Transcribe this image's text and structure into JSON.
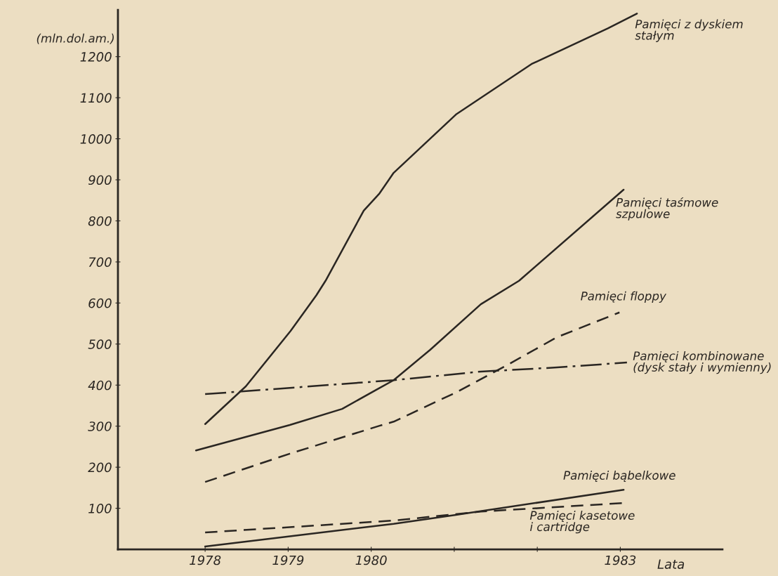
{
  "chart_data": {
    "type": "line",
    "xlabel": "Lata",
    "ylabel": "(mln.dol.am.)",
    "xlim": [
      1976.95,
      1984.23
    ],
    "ylim": [
      0,
      1314
    ],
    "xticks": [
      1978,
      1979,
      1980,
      {
        "value": 1981,
        "label": null
      },
      {
        "value": 1982,
        "label": null
      },
      1983
    ],
    "yticks": [
      100,
      200,
      300,
      400,
      500,
      600,
      700,
      800,
      900,
      1000,
      1100,
      1200
    ],
    "grid": false,
    "legend": false,
    "marker": "none",
    "series": [
      {
        "name": "Pamięci z dyskiem\nstałym",
        "color": "#2a2622",
        "line_style": "solid",
        "x": [
          1978.0,
          1978.49,
          1979.03,
          1979.34,
          1979.45,
          1979.91,
          1980.1,
          1980.27,
          1981.02,
          1981.93,
          1982.85,
          1983.2
        ],
        "values": [
          305,
          397,
          532,
          619,
          654,
          825,
          867,
          917,
          1059,
          1182,
          1269,
          1305
        ]
      },
      {
        "name": "Pamięci taśmowe\nszpulowe",
        "color": "#2a2622",
        "line_style": "solid",
        "x": [
          1977.89,
          1979.02,
          1979.65,
          1980.1,
          1980.27,
          1980.71,
          1981.32,
          1981.78,
          1983.04
        ],
        "values": [
          241,
          303,
          342,
          393,
          412,
          486,
          597,
          654,
          876
        ]
      },
      {
        "name": "Pamięci floppy",
        "color": "#2a2622",
        "line_style": "dashed",
        "x": [
          1978.0,
          1979.02,
          1980.1,
          1980.27,
          1981.02,
          1981.63,
          1982.24,
          1982.99
        ],
        "values": [
          164,
          233,
          301,
          311,
          382,
          448,
          517,
          577
        ]
      },
      {
        "name": "Pamięci kombinowane\n(dysk stały i wymienny)",
        "color": "#2a2622",
        "line_style": "dashdot",
        "x": [
          1978.0,
          1980.27,
          1981.32,
          1982.24,
          1983.08
        ],
        "values": [
          378,
          412,
          433,
          443,
          455
        ]
      },
      {
        "name": "Pamięci bąbelkowe",
        "color": "#2a2622",
        "line_style": "solid",
        "x": [
          1978.0,
          1980.27,
          1981.02,
          1983.04
        ],
        "values": [
          7,
          62,
          84,
          145
        ]
      },
      {
        "name": "Pamięci kasetowe\ni cartridge",
        "color": "#2a2622",
        "line_style": "dashed",
        "x": [
          1978.0,
          1980.27,
          1981.32,
          1983.06
        ],
        "values": [
          41,
          70,
          92,
          113
        ]
      }
    ]
  }
}
